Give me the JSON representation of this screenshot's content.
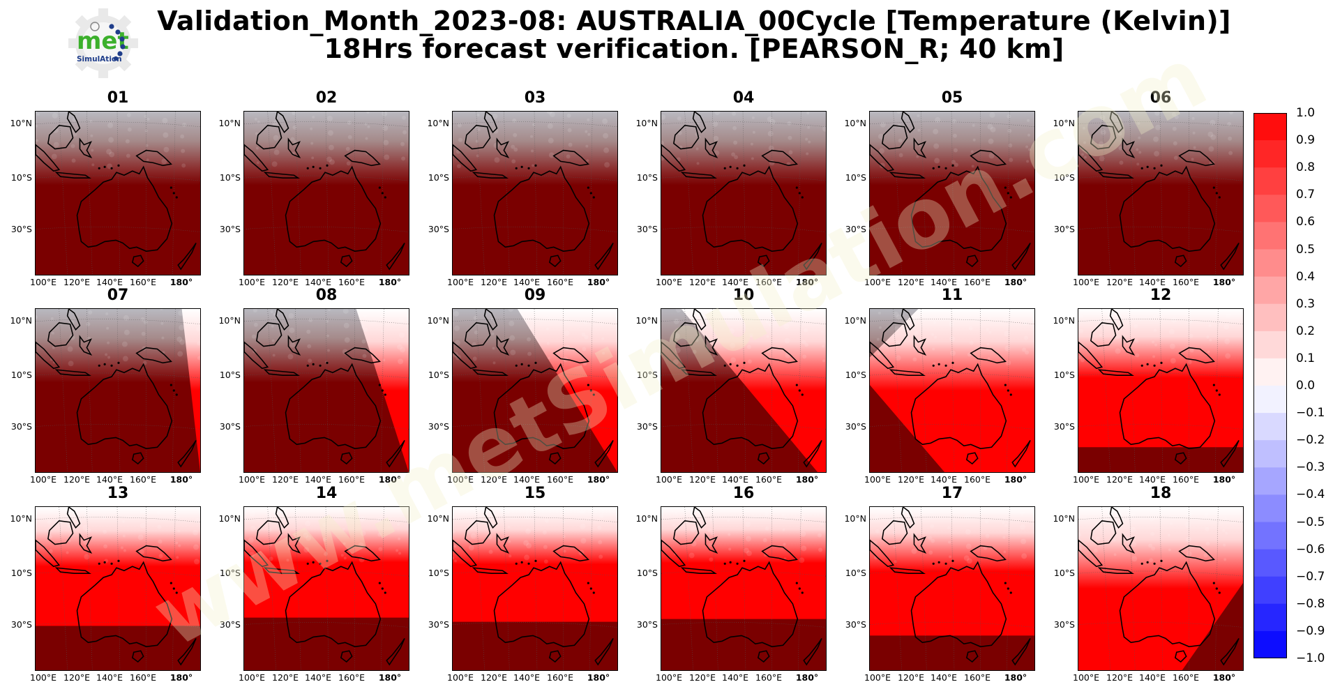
{
  "title_line1": "Validation_Month_2023-08: AUSTRALIA_00Cycle [Temperature (Kelvin)]",
  "title_line2": "18Hrs forecast verification.  [PEARSON_R; 40 km]",
  "logo": {
    "text_main": "met",
    "text_sub": "SimulAtion",
    "icon": "gear-logo-icon"
  },
  "watermark_text": "www.metSimulation.com",
  "lat_labels": [
    "10°N",
    "10°S",
    "30°S"
  ],
  "lon_labels": [
    "100°E",
    "120°E",
    "140°E",
    "160°E",
    "180°"
  ],
  "panels": [
    {
      "label": "01",
      "red_fraction": 0.0
    },
    {
      "label": "02",
      "red_fraction": 0.0
    },
    {
      "label": "03",
      "red_fraction": 0.0
    },
    {
      "label": "04",
      "red_fraction": 0.0
    },
    {
      "label": "05",
      "red_fraction": 0.0
    },
    {
      "label": "06",
      "red_fraction": 0.0
    },
    {
      "label": "07",
      "red_fraction": 0.07
    },
    {
      "label": "08",
      "red_fraction": 0.2
    },
    {
      "label": "09",
      "red_fraction": 0.38
    },
    {
      "label": "10",
      "red_fraction": 0.55
    },
    {
      "label": "11",
      "red_fraction": 0.72
    },
    {
      "label": "12",
      "red_fraction": 0.85
    },
    {
      "label": "13",
      "red_fraction": 0.8
    },
    {
      "label": "14",
      "red_fraction": 0.68
    },
    {
      "label": "15",
      "red_fraction": 0.72
    },
    {
      "label": "16",
      "red_fraction": 0.75
    },
    {
      "label": "17",
      "red_fraction": 0.8
    },
    {
      "label": "18",
      "red_fraction": 0.88
    }
  ],
  "colorbar": {
    "min": -1.0,
    "max": 1.0,
    "ticks": [
      "1.0",
      "0.9",
      "0.8",
      "0.7",
      "0.6",
      "0.5",
      "0.4",
      "0.3",
      "0.2",
      "0.1",
      "0.0",
      "−0.1",
      "−0.2",
      "−0.3",
      "−0.4",
      "−0.5",
      "−0.6",
      "−0.7",
      "−0.8",
      "−0.9",
      "−1.0"
    ],
    "positive_color": "#ff0000",
    "negative_color": "#0000ff",
    "dark_overlay_color": "#7a0000"
  }
}
